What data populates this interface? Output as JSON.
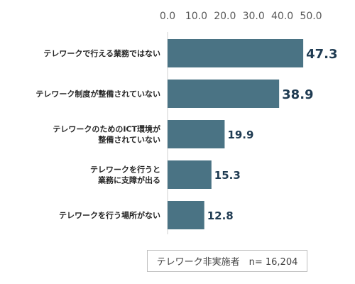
{
  "chart_data": {
    "type": "bar",
    "orientation": "horizontal",
    "categories": [
      [
        "テレワークで行える業務ではない"
      ],
      [
        "テレワーク制度が整備されていない"
      ],
      [
        "テレワークのためのICT環境が",
        "整備されていない"
      ],
      [
        "テレワークを行うと",
        "業務に支障が出る"
      ],
      [
        "テレワークを行う場所がない"
      ]
    ],
    "values": [
      47.3,
      38.9,
      19.9,
      15.3,
      12.8
    ],
    "value_labels": [
      "47.3",
      "38.9",
      "19.9",
      "15.3",
      "12.8"
    ],
    "xlim": [
      0,
      50
    ],
    "x_ticks": [
      "0.0",
      "10.0",
      "20.0",
      "30.0",
      "40.0",
      "50.0"
    ],
    "x_tick_values": [
      0,
      10,
      20,
      30,
      40,
      50
    ],
    "axis_position": "top",
    "grid": false,
    "bar_color": "#4a7384",
    "note": "テレワーク非実施者　n= 16,204"
  }
}
